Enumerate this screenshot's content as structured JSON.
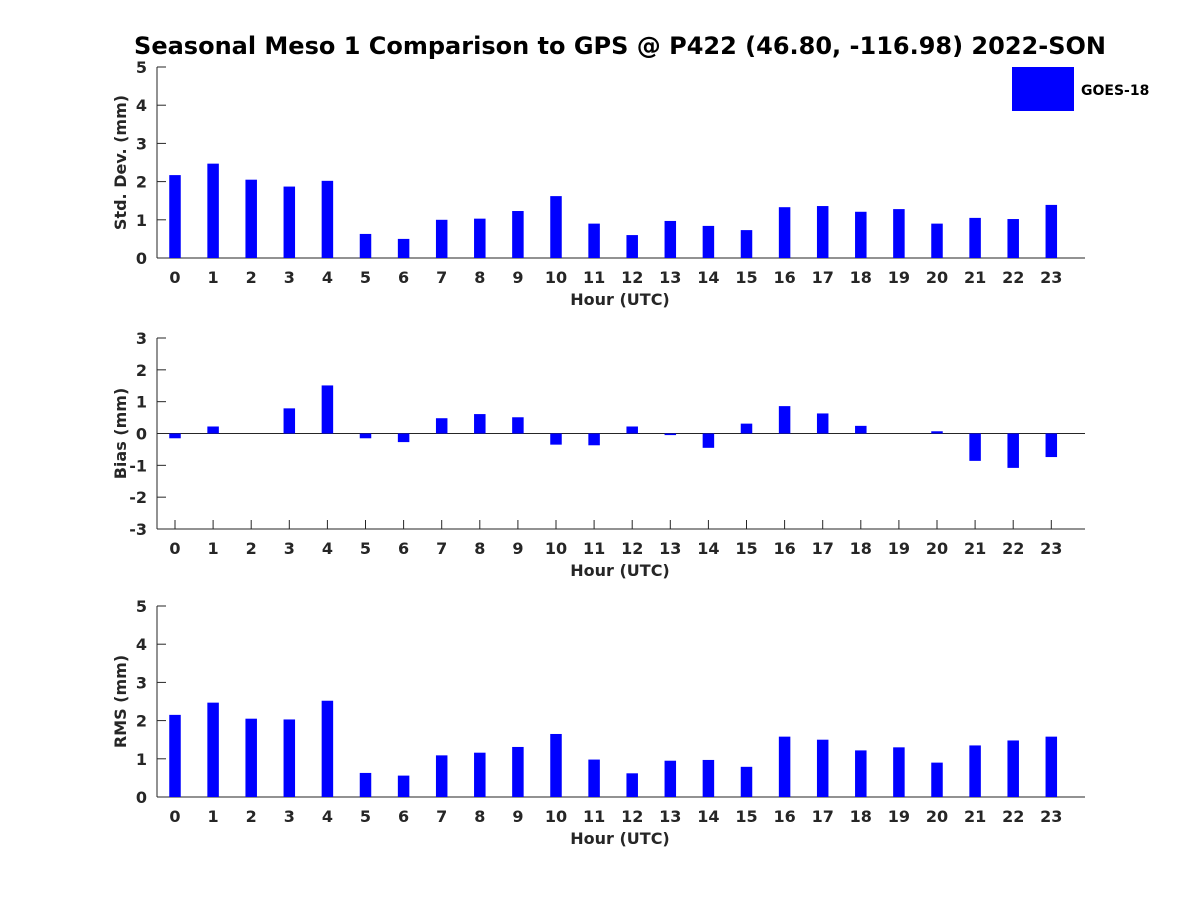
{
  "title": "Seasonal Meso 1 Comparison to GPS @ P422 (46.80, -116.98) 2022-SON",
  "colors": {
    "bar": "#0000ff",
    "axis": "#262626",
    "text": "#262626"
  },
  "legend": {
    "label": "GOES-18",
    "placement": "top-right"
  },
  "chart_data": [
    {
      "type": "bar",
      "title": "",
      "xlabel": "Hour (UTC)",
      "ylabel": "Std. Dev. (mm)",
      "ylim": [
        0,
        5
      ],
      "yticks": [
        "0",
        "1",
        "2",
        "3",
        "4",
        "5"
      ],
      "categories": [
        "0",
        "1",
        "2",
        "3",
        "4",
        "5",
        "6",
        "7",
        "8",
        "9",
        "10",
        "11",
        "12",
        "13",
        "14",
        "15",
        "16",
        "17",
        "18",
        "19",
        "20",
        "21",
        "22",
        "23"
      ],
      "series": [
        {
          "name": "GOES-18",
          "values": [
            2.17,
            2.47,
            2.05,
            1.87,
            2.02,
            0.63,
            0.5,
            1.0,
            1.03,
            1.23,
            1.62,
            0.9,
            0.6,
            0.97,
            0.84,
            0.73,
            1.33,
            1.36,
            1.21,
            1.28,
            0.9,
            1.05,
            1.02,
            1.39
          ]
        }
      ]
    },
    {
      "type": "bar",
      "title": "",
      "xlabel": "Hour (UTC)",
      "ylabel": "Bias (mm)",
      "ylim": [
        -3,
        3
      ],
      "yticks": [
        "-3",
        "-2",
        "-1",
        "0",
        "1",
        "2",
        "3"
      ],
      "categories": [
        "0",
        "1",
        "2",
        "3",
        "4",
        "5",
        "6",
        "7",
        "8",
        "9",
        "10",
        "11",
        "12",
        "13",
        "14",
        "15",
        "16",
        "17",
        "18",
        "19",
        "20",
        "21",
        "22",
        "23"
      ],
      "series": [
        {
          "name": "GOES-18",
          "values": [
            -0.15,
            0.22,
            0.0,
            0.79,
            1.51,
            -0.15,
            -0.27,
            0.48,
            0.61,
            0.51,
            -0.35,
            -0.37,
            0.22,
            -0.05,
            -0.45,
            0.31,
            0.86,
            0.63,
            0.24,
            0.0,
            0.07,
            -0.86,
            -1.08,
            -0.74
          ]
        }
      ]
    },
    {
      "type": "bar",
      "title": "",
      "xlabel": "Hour (UTC)",
      "ylabel": "RMS (mm)",
      "ylim": [
        0,
        5
      ],
      "yticks": [
        "0",
        "1",
        "2",
        "3",
        "4",
        "5"
      ],
      "categories": [
        "0",
        "1",
        "2",
        "3",
        "4",
        "5",
        "6",
        "7",
        "8",
        "9",
        "10",
        "11",
        "12",
        "13",
        "14",
        "15",
        "16",
        "17",
        "18",
        "19",
        "20",
        "21",
        "22",
        "23"
      ],
      "series": [
        {
          "name": "GOES-18",
          "values": [
            2.15,
            2.47,
            2.05,
            2.03,
            2.52,
            0.63,
            0.56,
            1.09,
            1.16,
            1.31,
            1.65,
            0.98,
            0.62,
            0.95,
            0.97,
            0.79,
            1.58,
            1.5,
            1.22,
            1.3,
            0.9,
            1.35,
            1.48,
            1.58
          ]
        }
      ]
    }
  ]
}
